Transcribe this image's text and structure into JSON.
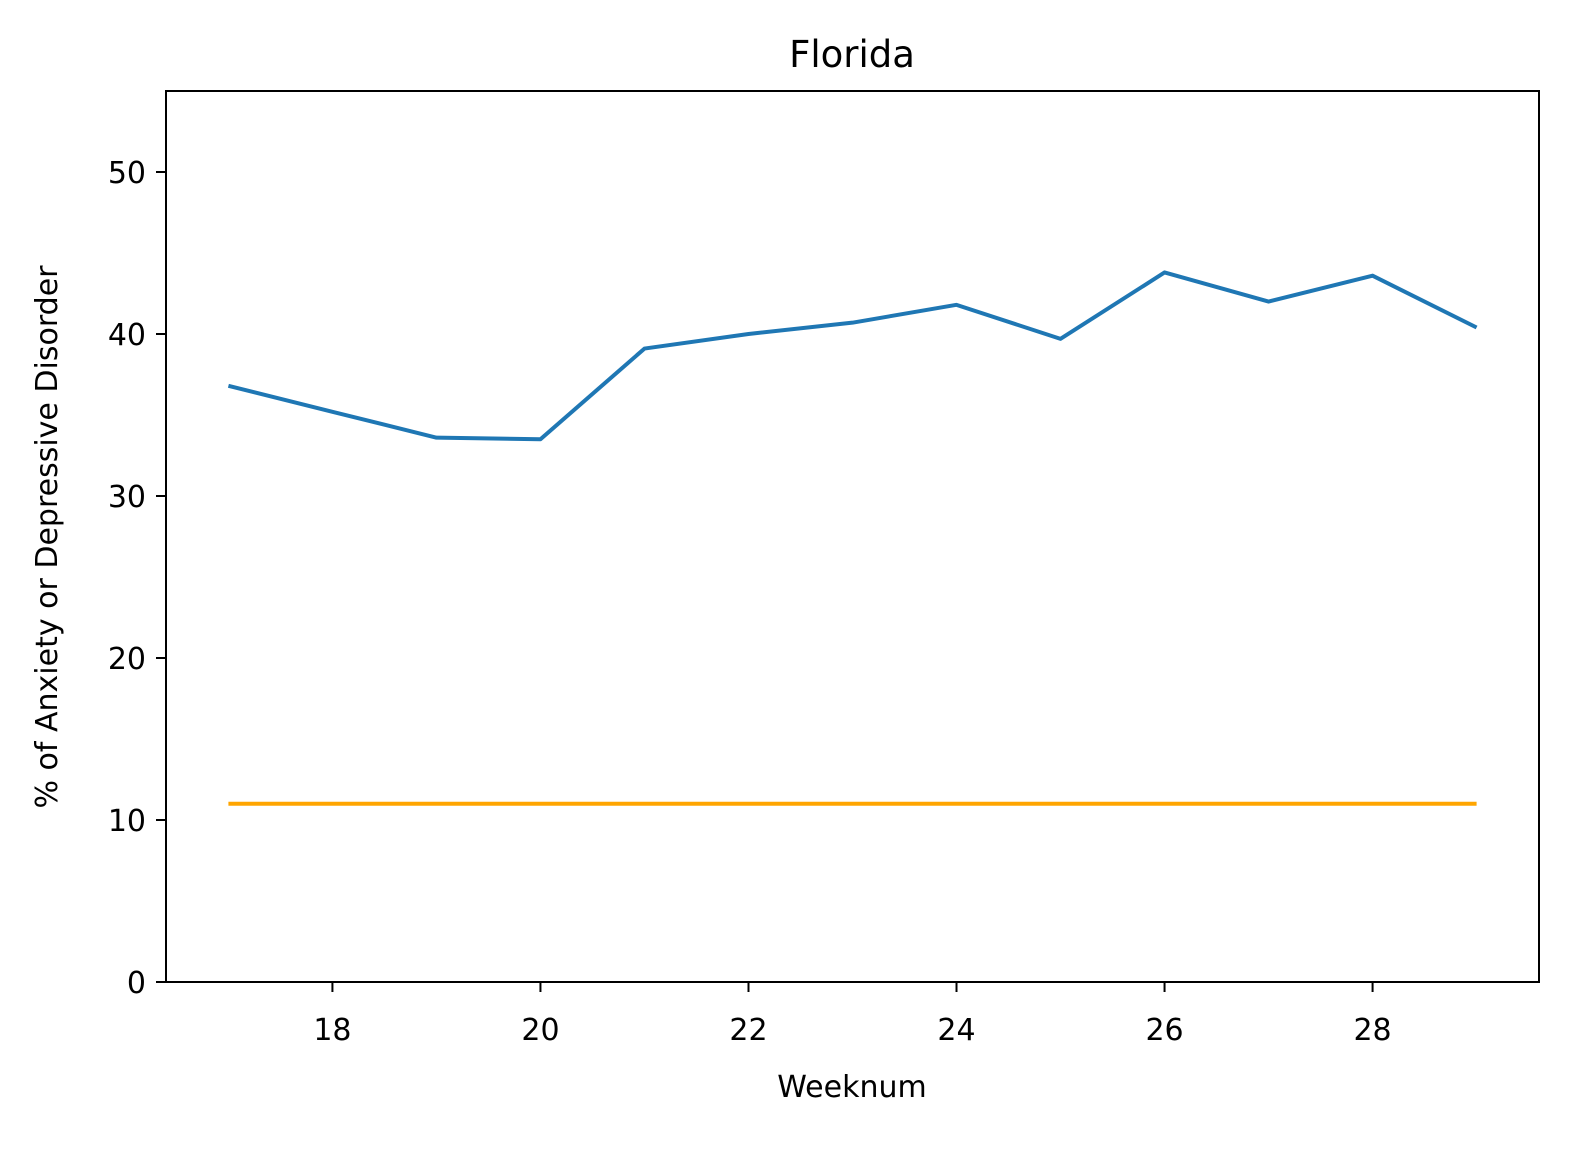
{
  "chart_data": {
    "type": "line",
    "title": "Florida",
    "xlabel": "Weeknum",
    "ylabel": "% of Anxiety or Depressive Disorder",
    "xlim": [
      16.4,
      29.6
    ],
    "ylim": [
      0,
      55
    ],
    "xticks": [
      18,
      20,
      22,
      24,
      26,
      28
    ],
    "yticks": [
      0,
      10,
      20,
      30,
      40,
      50
    ],
    "grid": false,
    "series": [
      {
        "color": "#1f77b4",
        "x": [
          17,
          18,
          19,
          20,
          21,
          22,
          23,
          24,
          25,
          26,
          27,
          28,
          29
        ],
        "y": [
          36.8,
          35.2,
          33.6,
          33.5,
          39.1,
          40.0,
          40.7,
          41.8,
          39.7,
          43.8,
          42.0,
          43.6,
          40.4
        ]
      },
      {
        "color": "#ffa500",
        "x": [
          17,
          29
        ],
        "y": [
          11.0,
          11.0
        ]
      }
    ]
  }
}
